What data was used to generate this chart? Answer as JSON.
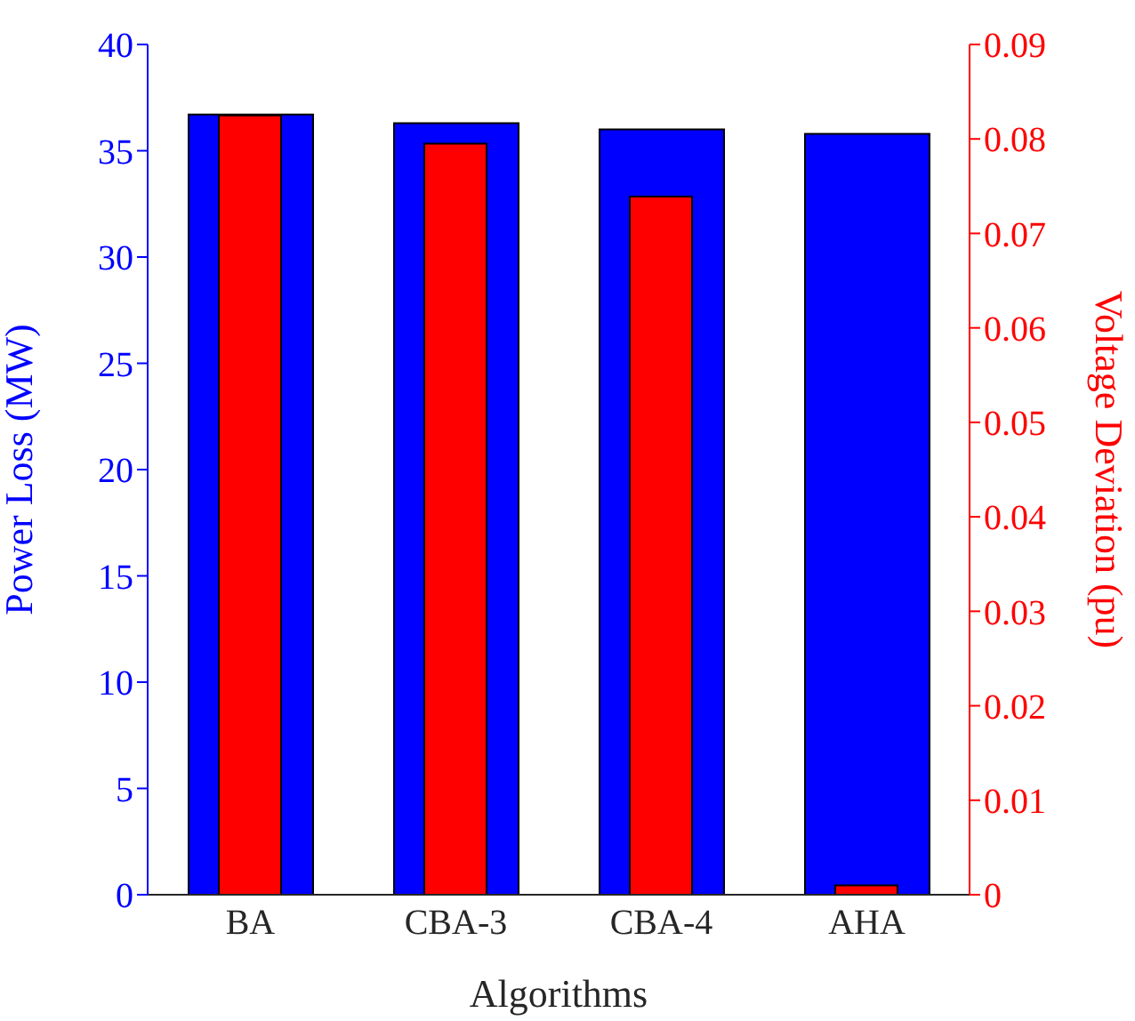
{
  "chart_data": {
    "type": "bar",
    "xlabel": "Algorithms",
    "ylabel": "Power Loss (MW)",
    "y2label": "Voltage Deviation (pu)",
    "categories": [
      "BA",
      "CBA-3",
      "CBA-4",
      "AHA"
    ],
    "series": [
      {
        "color": "#0000ff",
        "values": [
          36.7,
          36.3,
          36.0,
          35.8
        ]
      },
      {
        "color": "#ff0000",
        "axis": "y2",
        "values": [
          0.0825,
          0.0795,
          0.0739,
          0.001
        ]
      }
    ],
    "ylim": [
      0,
      40
    ],
    "yticks": [
      0,
      5,
      10,
      15,
      20,
      25,
      30,
      35,
      40
    ],
    "y2lim": [
      0,
      0.09
    ],
    "y2ticks": [
      0,
      0.01,
      0.02,
      0.03,
      0.04,
      0.05,
      0.06,
      0.07,
      0.08,
      0.09
    ],
    "grid": false,
    "legend": false
  }
}
